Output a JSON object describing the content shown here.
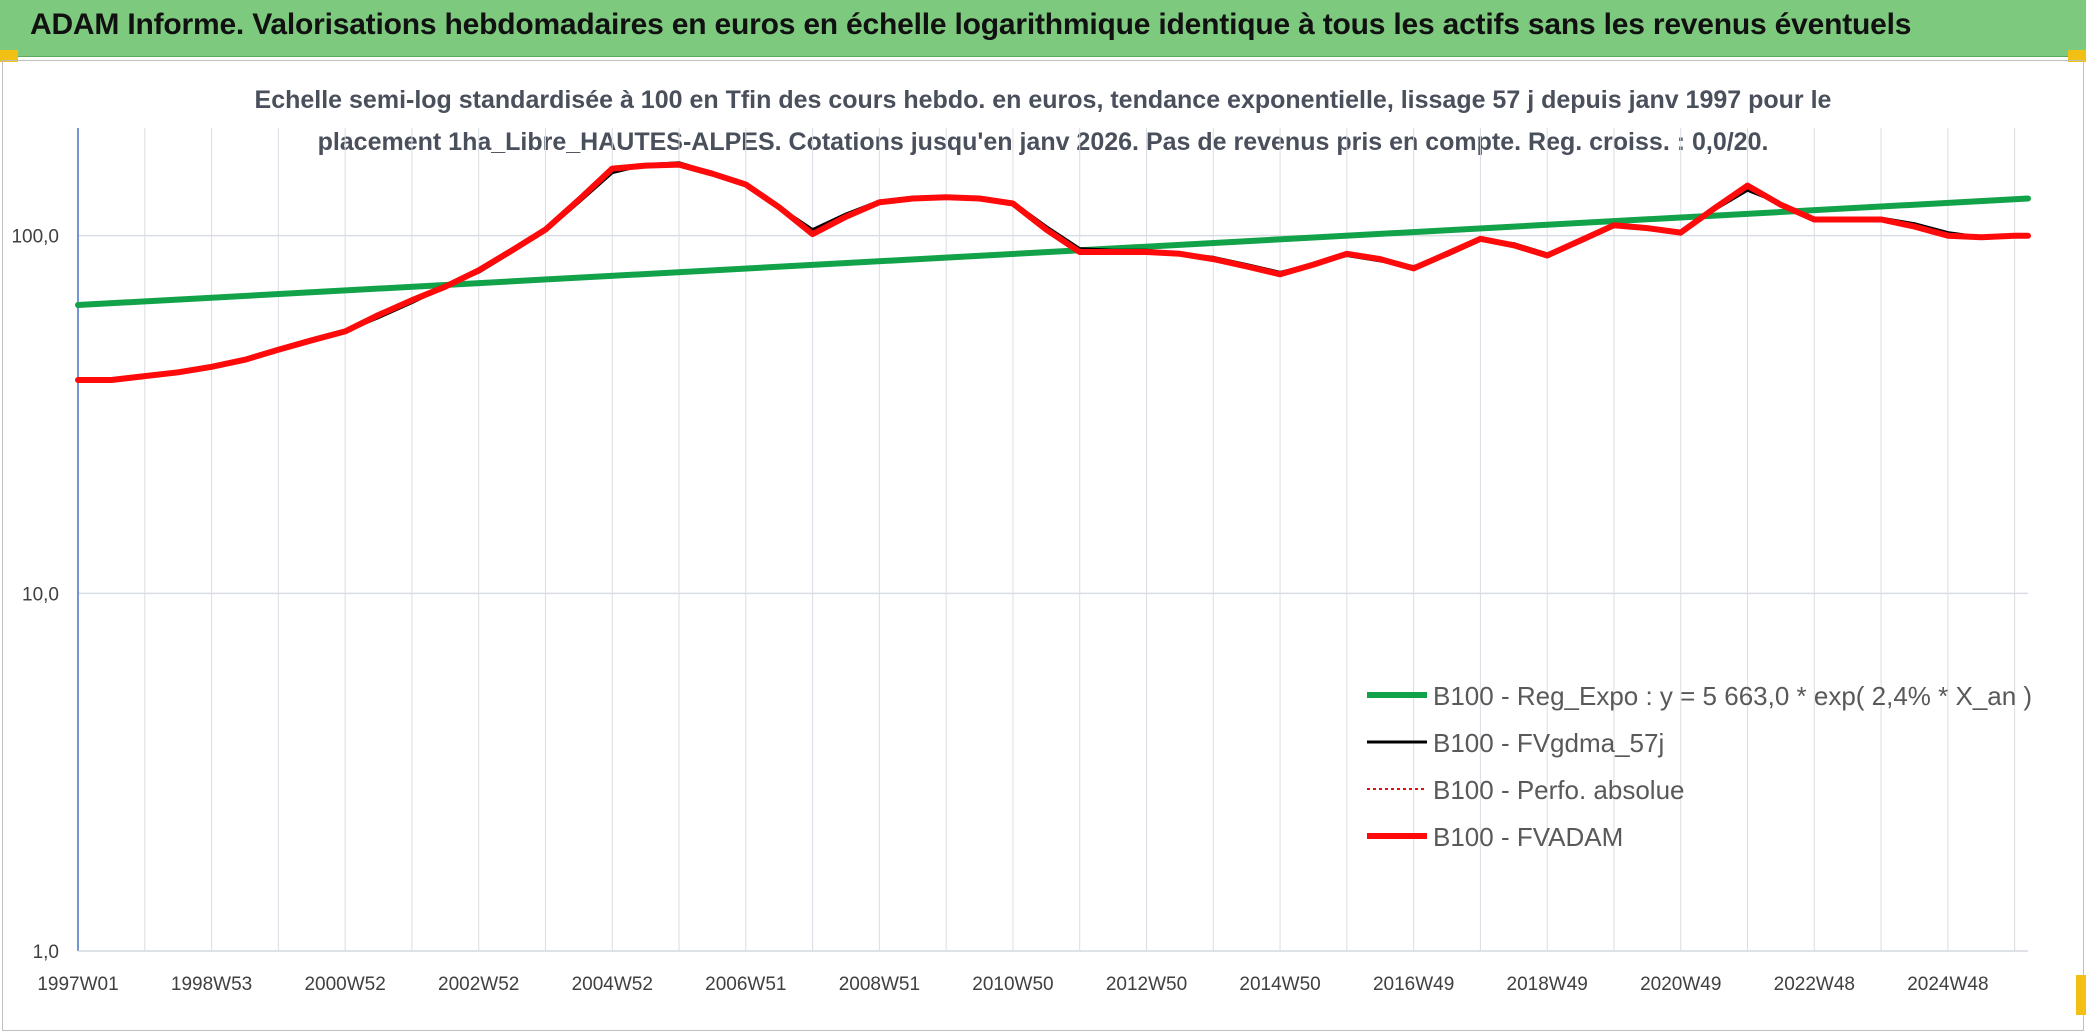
{
  "header": {
    "title": "ADAM Informe. Valorisations hebdomadaires en euros en échelle logarithmique identique à tous les actifs sans les revenus éventuels"
  },
  "chart_data": {
    "type": "line",
    "y_scale": "log",
    "title_line1": "Echelle semi-log standardisée à 100 en Tfin des cours hebdo. en euros, tendance exponentielle, lissage 57 j depuis janv 1997 pour le",
    "title_line2": "placement 1ha_Libre_HAUTES-ALPES. Cotations jusqu'en janv 2026. Pas de revenus pris en compte. Reg. croiss. : 0,0/20.",
    "ylim": [
      1,
      200
    ],
    "xlim": [
      1997.0,
      2026.2
    ],
    "y_ticks": [
      {
        "value": 1,
        "label": "1,0"
      },
      {
        "value": 10,
        "label": "10,0"
      },
      {
        "value": 100,
        "label": "100,0"
      }
    ],
    "x_ticks": [
      {
        "value": 1997.0,
        "label": "1997W01"
      },
      {
        "value": 1999.0,
        "label": "1998W53"
      },
      {
        "value": 2001.0,
        "label": "2000W52"
      },
      {
        "value": 2003.0,
        "label": "2002W52"
      },
      {
        "value": 2005.0,
        "label": "2004W52"
      },
      {
        "value": 2007.0,
        "label": "2006W51"
      },
      {
        "value": 2009.0,
        "label": "2008W51"
      },
      {
        "value": 2011.0,
        "label": "2010W50"
      },
      {
        "value": 2013.0,
        "label": "2012W50"
      },
      {
        "value": 2015.0,
        "label": "2014W50"
      },
      {
        "value": 2017.0,
        "label": "2016W49"
      },
      {
        "value": 2019.0,
        "label": "2018W49"
      },
      {
        "value": 2021.0,
        "label": "2020W49"
      },
      {
        "value": 2023.0,
        "label": "2022W48"
      },
      {
        "value": 2025.0,
        "label": "2024W48"
      }
    ],
    "series": [
      {
        "name": "B100 - Reg_Expo : y = 5 663,0 * exp( 2,4% *  X_an )",
        "color": "#12a24a",
        "width": 6,
        "dash": "",
        "x": [
          1997.0,
          2026.2
        ],
        "values": [
          64,
          127
        ]
      },
      {
        "name": "B100 - FVgdma_57j",
        "color": "#000000",
        "width": 3,
        "dash": "",
        "x": [
          1997.0,
          1997.5,
          1998.0,
          1998.5,
          1999.0,
          1999.5,
          2000.0,
          2000.5,
          2001.0,
          2001.5,
          2002.0,
          2002.5,
          2003.0,
          2003.5,
          2004.0,
          2004.5,
          2005.0,
          2005.5,
          2006.0,
          2006.5,
          2007.0,
          2007.5,
          2008.0,
          2008.5,
          2009.0,
          2009.5,
          2010.0,
          2010.5,
          2011.0,
          2011.5,
          2012.0,
          2012.5,
          2013.0,
          2013.5,
          2014.0,
          2014.5,
          2015.0,
          2015.5,
          2016.0,
          2016.5,
          2017.0,
          2017.5,
          2018.0,
          2018.5,
          2019.0,
          2019.5,
          2020.0,
          2020.5,
          2021.0,
          2021.5,
          2022.0,
          2022.5,
          2023.0,
          2023.5,
          2024.0,
          2024.5,
          2025.0,
          2025.5,
          2026.0,
          2026.2
        ],
        "values": [
          39.5,
          39.5,
          40.5,
          41.5,
          43,
          45,
          48,
          51,
          54,
          59,
          65,
          72,
          79,
          90,
          103,
          124,
          150,
          158,
          160,
          150,
          140,
          120,
          104,
          115,
          125,
          128,
          129,
          127,
          124,
          106,
          92,
          91,
          91,
          89,
          87,
          83,
          79,
          83,
          88,
          85,
          82,
          88,
          97,
          95,
          89,
          96,
          106,
          105,
          101,
          118,
          134,
          123,
          112,
          112,
          112,
          108,
          102,
          99,
          100,
          100
        ]
      },
      {
        "name": "B100 - Perfo. absolue",
        "color": "#e0100e",
        "width": 2,
        "dash": "3,3",
        "x": [],
        "values": []
      },
      {
        "name": "B100 - FVADAM",
        "color": "#ff0a0a",
        "width": 6,
        "dash": "",
        "x": [
          1997.0,
          1997.5,
          1998.0,
          1998.5,
          1999.0,
          1999.5,
          2000.0,
          2000.5,
          2001.0,
          2001.5,
          2002.0,
          2002.5,
          2003.0,
          2003.5,
          2004.0,
          2004.5,
          2005.0,
          2005.5,
          2006.0,
          2006.5,
          2007.0,
          2007.5,
          2008.0,
          2008.5,
          2009.0,
          2009.5,
          2010.0,
          2010.5,
          2011.0,
          2011.5,
          2012.0,
          2012.5,
          2013.0,
          2013.5,
          2014.0,
          2014.5,
          2015.0,
          2015.5,
          2016.0,
          2016.5,
          2017.0,
          2017.5,
          2018.0,
          2018.5,
          2019.0,
          2019.5,
          2020.0,
          2020.5,
          2021.0,
          2021.5,
          2022.0,
          2022.5,
          2023.0,
          2023.5,
          2024.0,
          2024.5,
          2025.0,
          2025.5,
          2026.0,
          2026.2
        ],
        "values": [
          39.5,
          39.5,
          40.5,
          41.5,
          43,
          45,
          48,
          51,
          54,
          60,
          66,
          72,
          80,
          91,
          104,
          126,
          154,
          157,
          158,
          149,
          139,
          120,
          101,
          113,
          124,
          127,
          128,
          127,
          123,
          104,
          90,
          90,
          90,
          89,
          86,
          82,
          78,
          83,
          89,
          86,
          81,
          89,
          98,
          94,
          88,
          97,
          107,
          105,
          102,
          119,
          138,
          122,
          111,
          111,
          111,
          106,
          100,
          99,
          100,
          100
        ]
      }
    ]
  }
}
